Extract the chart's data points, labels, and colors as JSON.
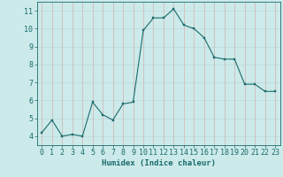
{
  "x": [
    0,
    1,
    2,
    3,
    4,
    5,
    6,
    7,
    8,
    9,
    10,
    11,
    12,
    13,
    14,
    15,
    16,
    17,
    18,
    19,
    20,
    21,
    22,
    23
  ],
  "y": [
    4.2,
    4.9,
    4.0,
    4.1,
    4.0,
    5.9,
    5.2,
    4.9,
    5.8,
    5.9,
    9.9,
    10.6,
    10.6,
    11.1,
    10.2,
    10.0,
    9.5,
    8.4,
    8.3,
    8.3,
    6.9,
    6.9,
    6.5,
    6.5
  ],
  "line_color": "#1a6b6b",
  "marker_color": "#1a6b6b",
  "bg_color": "#cceaea",
  "grid_h_color": "#c0d8d8",
  "grid_v_color": "#d4b0b0",
  "xlabel": "Humidex (Indice chaleur)",
  "xlim": [
    -0.5,
    23.5
  ],
  "ylim": [
    3.5,
    11.5
  ],
  "yticks": [
    4,
    5,
    6,
    7,
    8,
    9,
    10,
    11
  ],
  "xticks": [
    0,
    1,
    2,
    3,
    4,
    5,
    6,
    7,
    8,
    9,
    10,
    11,
    12,
    13,
    14,
    15,
    16,
    17,
    18,
    19,
    20,
    21,
    22,
    23
  ],
  "xlabel_fontsize": 6.5,
  "tick_fontsize": 6.0,
  "line_width": 0.8,
  "marker_size": 2.0
}
